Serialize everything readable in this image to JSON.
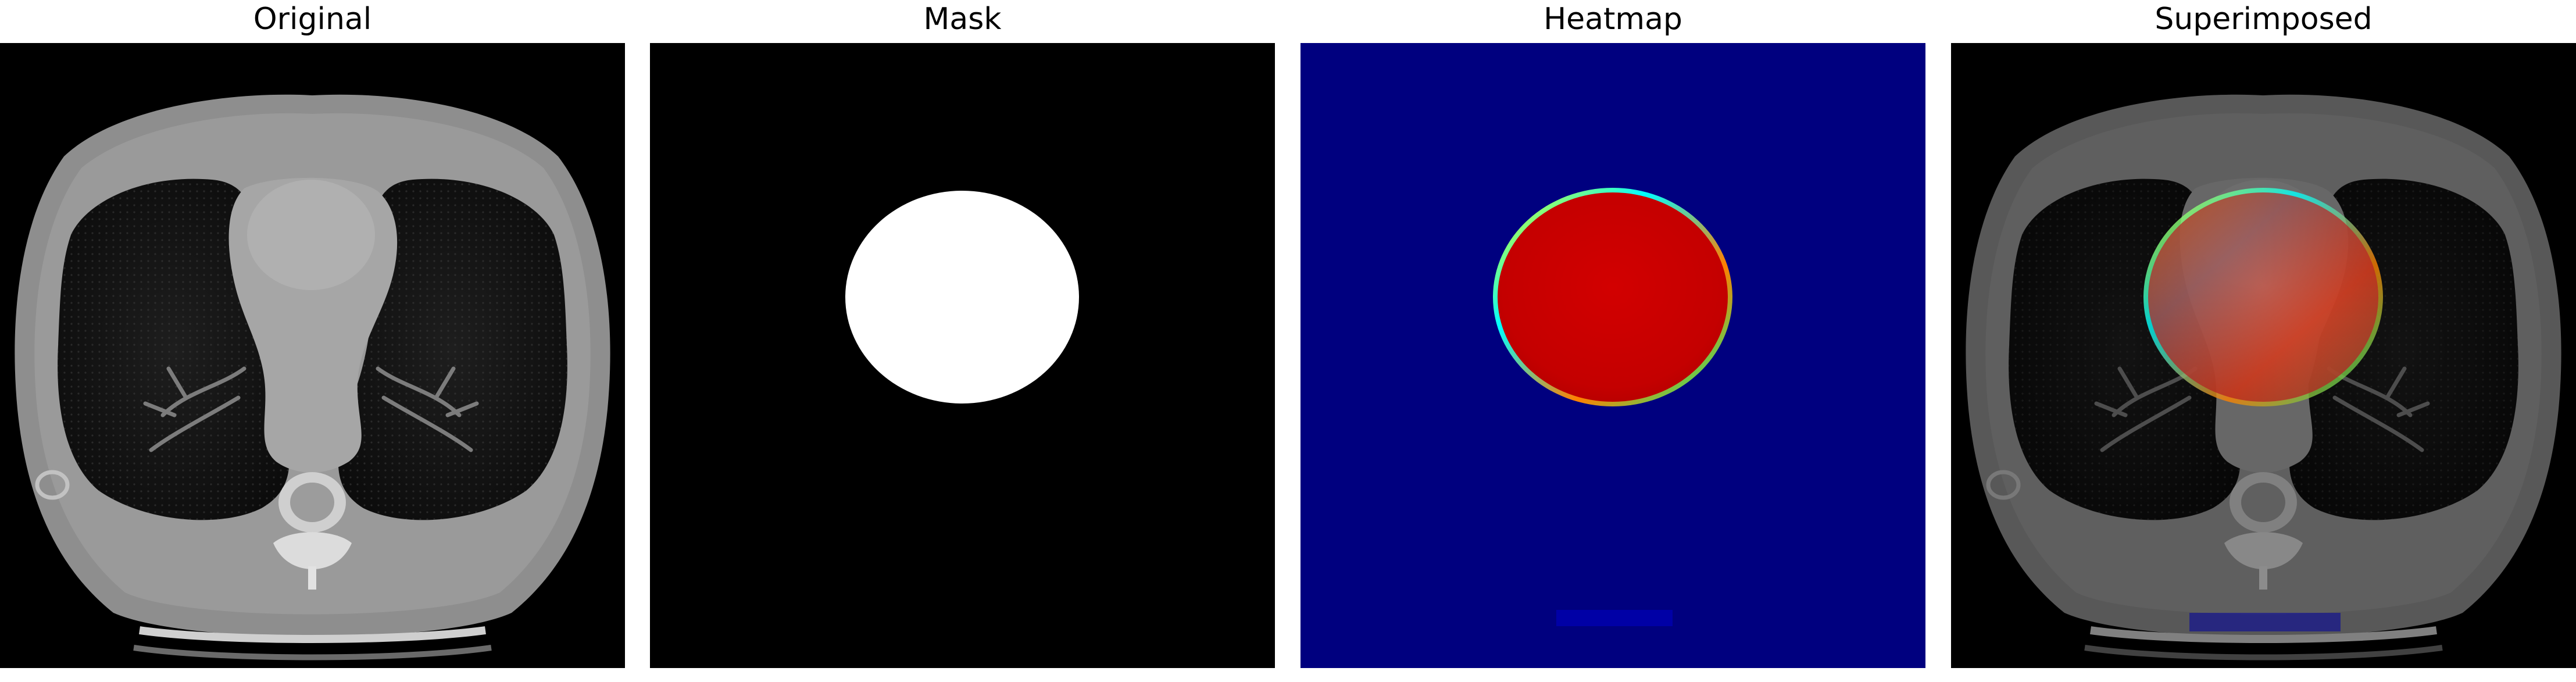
{
  "figure": {
    "panels": [
      {
        "title": "Original",
        "image": "axial chest CT slice, grayscale"
      },
      {
        "title": "Mask",
        "image": "binary segmentation mask, white region on black"
      },
      {
        "title": "Heatmap",
        "image": "jet-colormap heatmap, red region on dark blue"
      },
      {
        "title": "Superimposed",
        "image": "CT slice with translucent red heatmap overlay"
      }
    ],
    "colors": {
      "background": "#000000",
      "heatmap_low": "#00007f",
      "heatmap_high": "#cc0000",
      "mask_fill": "#ffffff"
    }
  }
}
